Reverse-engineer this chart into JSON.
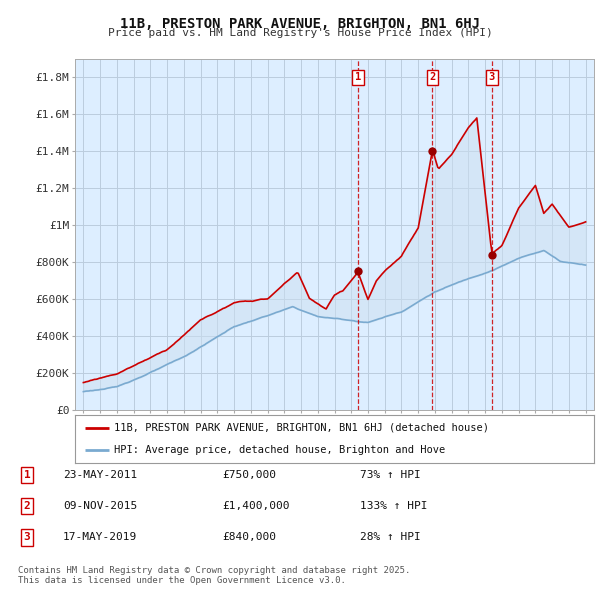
{
  "title": "11B, PRESTON PARK AVENUE, BRIGHTON, BN1 6HJ",
  "subtitle": "Price paid vs. HM Land Registry's House Price Index (HPI)",
  "legend_label_red": "11B, PRESTON PARK AVENUE, BRIGHTON, BN1 6HJ (detached house)",
  "legend_label_blue": "HPI: Average price, detached house, Brighton and Hove",
  "footnote": "Contains HM Land Registry data © Crown copyright and database right 2025.\nThis data is licensed under the Open Government Licence v3.0.",
  "sale_events": [
    {
      "label": "1",
      "date": "23-MAY-2011",
      "price": "£750,000",
      "pct": "73% ↑ HPI",
      "year": 2011.4
    },
    {
      "label": "2",
      "date": "09-NOV-2015",
      "price": "£1,400,000",
      "pct": "133% ↑ HPI",
      "year": 2015.85
    },
    {
      "label": "3",
      "date": "17-MAY-2019",
      "price": "£840,000",
      "pct": "28% ↑ HPI",
      "year": 2019.4
    }
  ],
  "ylim": [
    0,
    1900000
  ],
  "xlim": [
    1994.5,
    2025.5
  ],
  "yticks": [
    0,
    200000,
    400000,
    600000,
    800000,
    1000000,
    1200000,
    1400000,
    1600000,
    1800000
  ],
  "ytick_labels": [
    "£0",
    "£200K",
    "£400K",
    "£600K",
    "£800K",
    "£1M",
    "£1.2M",
    "£1.4M",
    "£1.6M",
    "£1.8M"
  ],
  "background_color": "#ffffff",
  "plot_background": "#ddeeff",
  "red_color": "#cc0000",
  "blue_color": "#7aaad0",
  "fill_color": "#ddeeff",
  "grid_color": "#bbccdd",
  "sale_marker_color": "#990000",
  "dashed_line_color": "#cc0000"
}
